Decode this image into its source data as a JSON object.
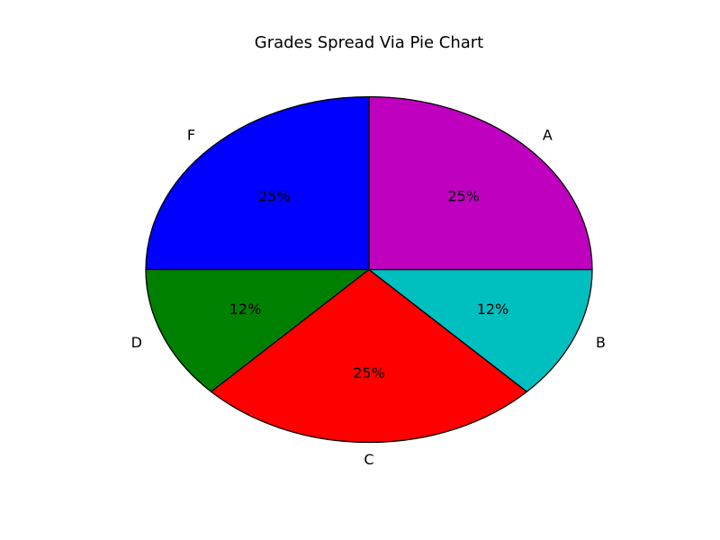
{
  "chart_data": {
    "type": "pie",
    "title": "Grades Spread Via Pie Chart",
    "start_angle_deg": 90,
    "direction": "counterclockwise",
    "slices": [
      {
        "label": "F",
        "value": 25,
        "pct_label": "25%",
        "color": "#0000ff"
      },
      {
        "label": "D",
        "value": 12.5,
        "pct_label": "12%",
        "color": "#008000"
      },
      {
        "label": "C",
        "value": 25,
        "pct_label": "25%",
        "color": "#ff0000"
      },
      {
        "label": "B",
        "value": 12.5,
        "pct_label": "12%",
        "color": "#00bfbf"
      },
      {
        "label": "A",
        "value": 25,
        "pct_label": "25%",
        "color": "#bf00bf"
      }
    ]
  }
}
